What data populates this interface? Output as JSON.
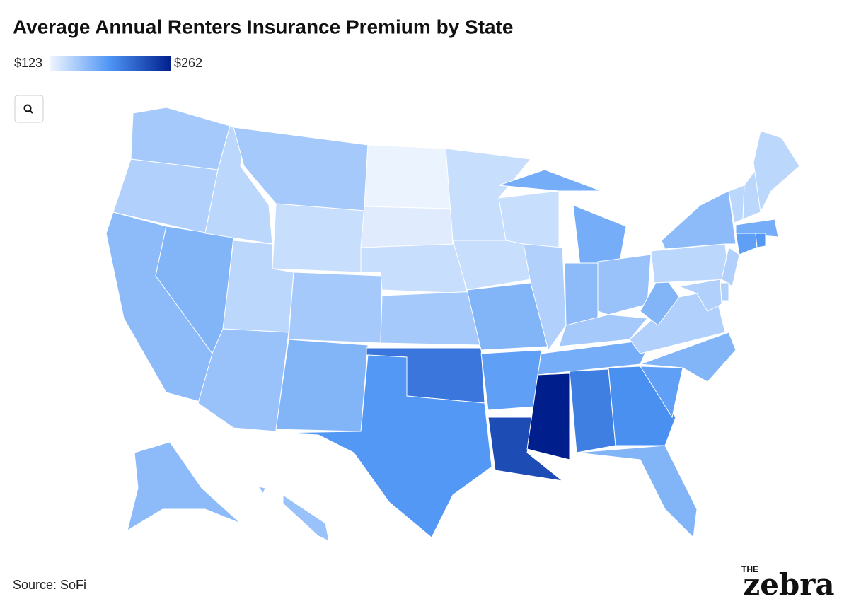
{
  "chart_data": {
    "type": "choropleth",
    "title": "Average Annual Renters Insurance Premium by State",
    "clim": [
      {
        "value": 123,
        "label": "$123"
      },
      {
        "value": 262,
        "label": "$262"
      }
    ],
    "colorscale": [
      "#f0f6ff",
      "#4d94f5",
      "#001e8c"
    ],
    "border_color": "#ffffff",
    "values": [
      155,
      150,
      165,
      170,
      145,
      155,
      140,
      145,
      155,
      160,
      170,
      125,
      130,
      140,
      155,
      210,
      190,
      140,
      140,
      170,
      185,
      235,
      140,
      150,
      175,
      165,
      160,
      155,
      175,
      262,
      205,
      195,
      170,
      185,
      170,
      150,
      170,
      145,
      165,
      145,
      145,
      145,
      175,
      185,
      190,
      150,
      150,
      150,
      165,
      160
    ],
    "source": "Source: SoFi"
  },
  "logo": {
    "small": "THE",
    "main": "zebra"
  }
}
